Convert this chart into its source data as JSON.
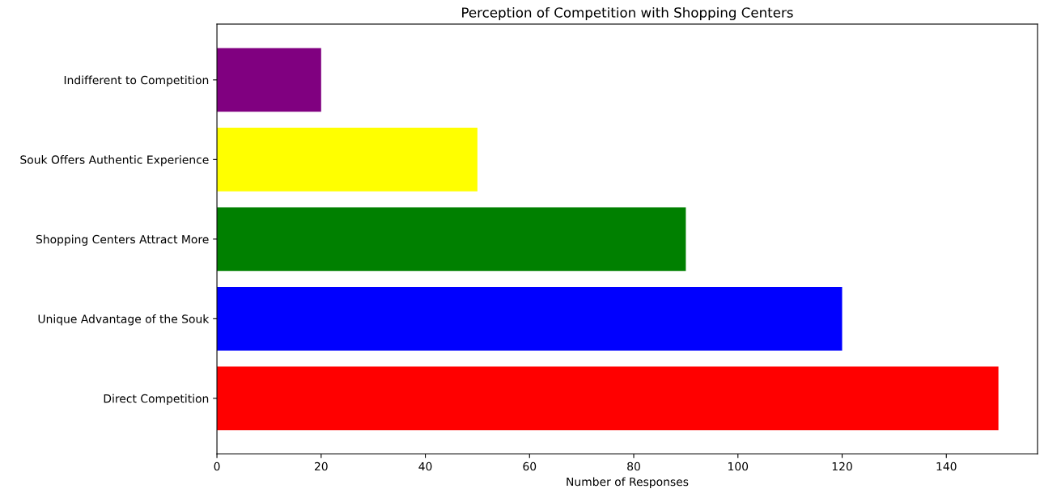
{
  "chart_data": {
    "type": "bar",
    "orientation": "horizontal",
    "title": "Perception of Competition with Shopping Centers",
    "xlabel": "Number of Responses",
    "categories": [
      "Indifferent to Competition",
      "Souk Offers Authentic Experience",
      "Shopping Centers Attract More",
      "Unique Advantage of the Souk",
      "Direct Competition"
    ],
    "values": [
      20,
      50,
      90,
      120,
      150
    ],
    "colors": [
      "#800080",
      "#ffff00",
      "#008000",
      "#0000ff",
      "#ff0000"
    ],
    "xlim": [
      0,
      157.5
    ],
    "xticks": [
      0,
      20,
      40,
      60,
      80,
      100,
      120,
      140
    ],
    "grid": false
  }
}
